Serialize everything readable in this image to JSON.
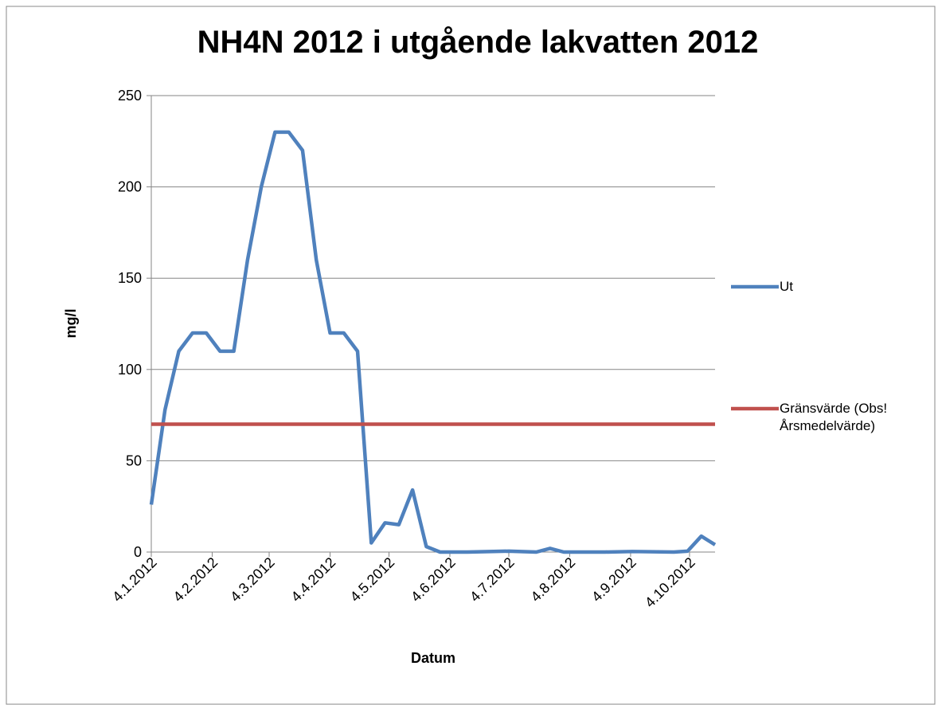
{
  "chart_data": {
    "type": "line",
    "title": "NH4N 2012 i utgående lakvatten 2012",
    "x_label": "Datum",
    "y_label": "mg/l",
    "xlim": [
      "4.1.2012",
      "17.10.2012"
    ],
    "xticks": [
      "4.1.2012",
      "4.2.2012",
      "4.3.2012",
      "4.4.2012",
      "4.5.2012",
      "4.6.2012",
      "4.7.2012",
      "4.8.2012",
      "4.9.2012",
      "4.10.2012"
    ],
    "ylim": [
      0,
      250
    ],
    "yticks": [
      0,
      50,
      100,
      150,
      200,
      250
    ],
    "grid": true,
    "legend": "right",
    "series": [
      {
        "name": "Ut",
        "color": "#4f81bd",
        "x": [
          "4.1.2012",
          "11.1.2012",
          "18.1.2012",
          "25.1.2012",
          "1.2.2012",
          "8.2.2012",
          "15.2.2012",
          "22.2.2012",
          "29.2.2012",
          "7.3.2012",
          "14.3.2012",
          "21.3.2012",
          "28.3.2012",
          "4.4.2012",
          "11.4.2012",
          "18.4.2012",
          "25.4.2012",
          "2.5.2012",
          "9.5.2012",
          "16.5.2012",
          "23.5.2012",
          "30.5.2012",
          "13.6.2012",
          "4.7.2012",
          "18.7.2012",
          "25.7.2012",
          "1.8.2012",
          "22.8.2012",
          "5.9.2012",
          "26.9.2012",
          "3.10.2012",
          "10.10.2012",
          "17.10.2012"
        ],
        "values": [
          26,
          78,
          110,
          120,
          120,
          110,
          110,
          160,
          200,
          230,
          230,
          220,
          160,
          120,
          120,
          110,
          5,
          16,
          15,
          34,
          3,
          0,
          0,
          0.5,
          0,
          2,
          0,
          0,
          0.3,
          0,
          0.5,
          8.7,
          4
        ]
      },
      {
        "name": "Gränsvärde (Obs! Årsmedelvärde)",
        "color": "#c0504d",
        "x": [
          "4.1.2012",
          "17.10.2012"
        ],
        "values": [
          70,
          70
        ]
      }
    ]
  }
}
